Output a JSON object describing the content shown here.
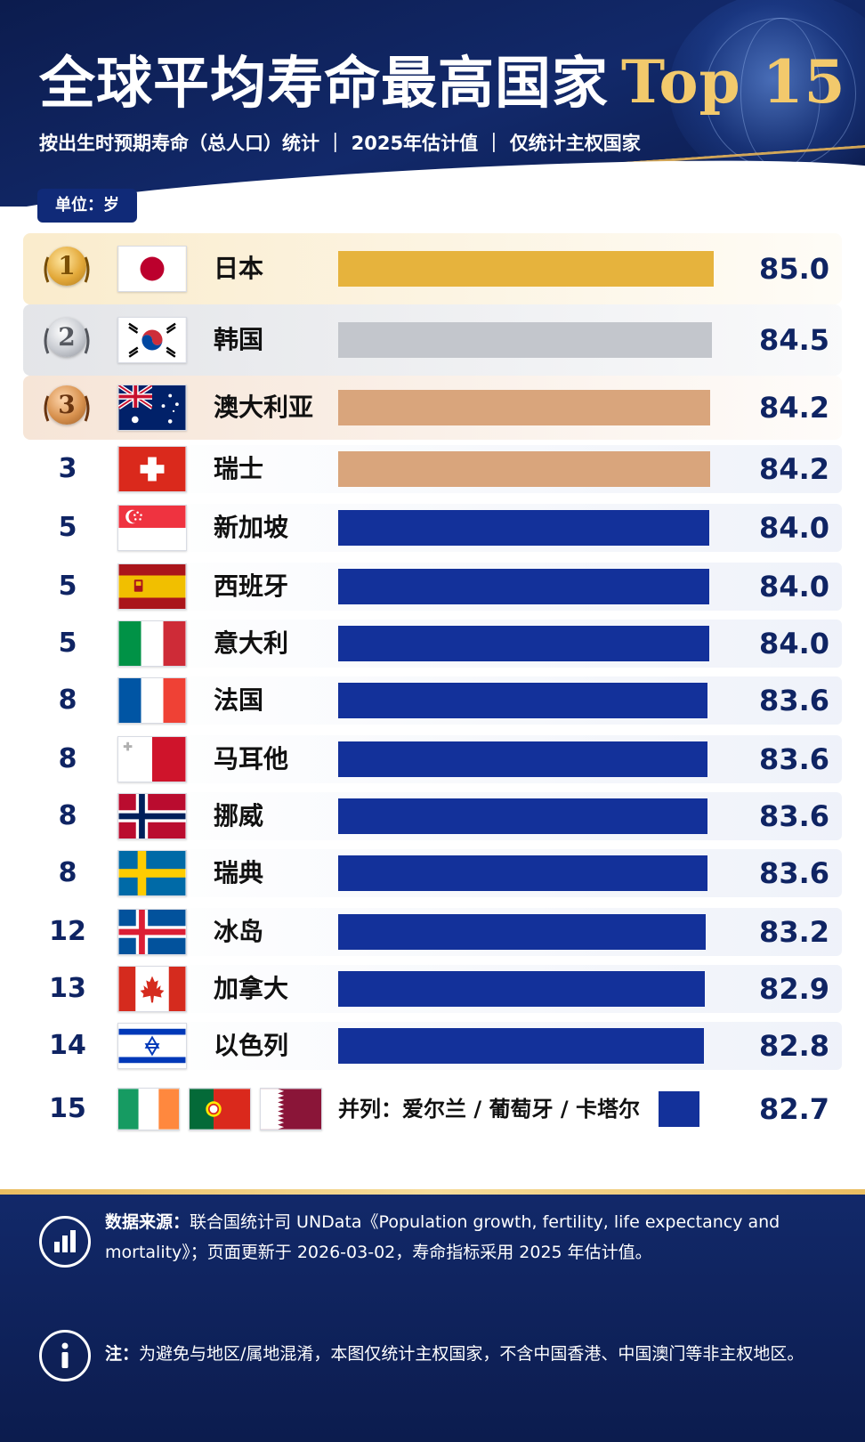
{
  "header": {
    "title": "全球平均寿命最高国家",
    "title_accent": "Top 15",
    "subtitle": "按出生时预期寿命（总人口）统计 ｜ 2025年估计值 ｜ 仅统计主权国家"
  },
  "unit_label": "单位：岁",
  "colors": {
    "gold": "#e6b33d",
    "silver": "#c3c6cc",
    "bronze": "#d9a57c",
    "navy": "#13319a",
    "rank_text": "#0f2463"
  },
  "chart_data": {
    "type": "bar",
    "orientation": "horizontal",
    "xlim": [
      0,
      85.0
    ],
    "grid": false,
    "rows": [
      {
        "rank": "1",
        "medal": "gold",
        "flag": "japan-flag",
        "country": "日本",
        "value": 85.0,
        "value_label": "85.0",
        "color": "#e6b33d"
      },
      {
        "rank": "2",
        "medal": "silver",
        "flag": "south-korea-flag",
        "country": "韩国",
        "value": 84.5,
        "value_label": "84.5",
        "color": "#c3c6cc"
      },
      {
        "rank": "3",
        "medal": "bronze",
        "flag": "australia-flag",
        "country": "澳大利亚",
        "value": 84.2,
        "value_label": "84.2",
        "color": "#d9a57c"
      },
      {
        "rank": "3",
        "medal": "",
        "flag": "switzerland-flag",
        "country": "瑞士",
        "value": 84.2,
        "value_label": "84.2",
        "color": "#d9a57c"
      },
      {
        "rank": "5",
        "medal": "",
        "flag": "singapore-flag",
        "country": "新加坡",
        "value": 84.0,
        "value_label": "84.0",
        "color": "#13319a"
      },
      {
        "rank": "5",
        "medal": "",
        "flag": "spain-flag",
        "country": "西班牙",
        "value": 84.0,
        "value_label": "84.0",
        "color": "#13319a"
      },
      {
        "rank": "5",
        "medal": "",
        "flag": "italy-flag",
        "country": "意大利",
        "value": 84.0,
        "value_label": "84.0",
        "color": "#13319a"
      },
      {
        "rank": "8",
        "medal": "",
        "flag": "france-flag",
        "country": "法国",
        "value": 83.6,
        "value_label": "83.6",
        "color": "#13319a"
      },
      {
        "rank": "8",
        "medal": "",
        "flag": "malta-flag",
        "country": "马耳他",
        "value": 83.6,
        "value_label": "83.6",
        "color": "#13319a"
      },
      {
        "rank": "8",
        "medal": "",
        "flag": "norway-flag",
        "country": "挪威",
        "value": 83.6,
        "value_label": "83.6",
        "color": "#13319a"
      },
      {
        "rank": "8",
        "medal": "",
        "flag": "sweden-flag",
        "country": "瑞典",
        "value": 83.6,
        "value_label": "83.6",
        "color": "#13319a"
      },
      {
        "rank": "12",
        "medal": "",
        "flag": "iceland-flag",
        "country": "冰岛",
        "value": 83.2,
        "value_label": "83.2",
        "color": "#13319a"
      },
      {
        "rank": "13",
        "medal": "",
        "flag": "canada-flag",
        "country": "加拿大",
        "value": 82.9,
        "value_label": "82.9",
        "color": "#13319a"
      },
      {
        "rank": "14",
        "medal": "",
        "flag": "israel-flag",
        "country": "以色列",
        "value": 82.8,
        "value_label": "82.8",
        "color": "#13319a"
      }
    ],
    "tie_row": {
      "rank": "15",
      "flags": [
        "ireland-flag",
        "portugal-flag",
        "qatar-flag"
      ],
      "label": "并列：爱尔兰 / 葡萄牙 / 卡塔尔",
      "value": 82.7,
      "value_label": "82.7",
      "color": "#13319a"
    }
  },
  "footer": {
    "source_icon": "bar-chart-icon",
    "source_label": "数据来源：",
    "source_text": "联合国统计司 UNData《Population growth, fertility, life expectancy and mortality》；页面更新于 2026-03-02，寿命指标采用 2025 年估计值。",
    "note_icon": "info-icon",
    "note_label": "注：",
    "note_text": "为避免与地区/属地混淆，本图仅统计主权国家，不含中国香港、中国澳门等非主权地区。"
  }
}
